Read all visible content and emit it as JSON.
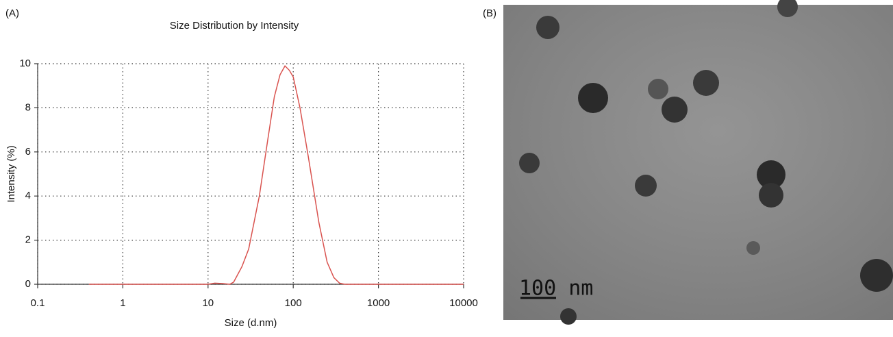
{
  "panel_labels": [
    "(A)",
    "(B)"
  ],
  "image": {
    "scale_bar": "100 nm"
  },
  "chart_data": {
    "type": "line",
    "title": "Size Distribution by Intensity",
    "x_label": "Size (d.nm)",
    "y_label": "Intensity (%)",
    "x": [
      0.4,
      1,
      5,
      10,
      12,
      15,
      18,
      20,
      25,
      30,
      40,
      50,
      60,
      70,
      80,
      90,
      100,
      120,
      150,
      200,
      250,
      300,
      350,
      400,
      1000,
      10000
    ],
    "values": [
      0,
      0,
      0,
      0,
      0.05,
      0.03,
      0,
      0.1,
      0.8,
      1.6,
      4,
      6.5,
      8.5,
      9.5,
      9.9,
      9.7,
      9.4,
      8,
      5.8,
      2.8,
      1,
      0.3,
      0.05,
      0,
      0,
      0
    ],
    "color": "#d9534f",
    "x_log": true,
    "xlim": [
      0.1,
      10000
    ],
    "xticks": [
      0.1,
      1,
      10,
      100,
      1000,
      10000
    ],
    "ylim": [
      0,
      10
    ],
    "yticks": [
      0,
      2,
      4,
      6,
      8,
      10
    ],
    "grid": true
  }
}
